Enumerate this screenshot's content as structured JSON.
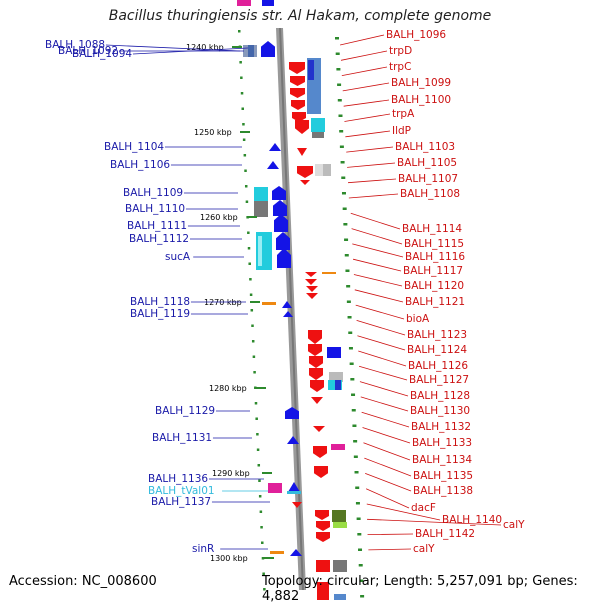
{
  "title": "Bacillus thuringiensis str. Al Hakam, complete genome",
  "accession_text": "Accession: NC_008600",
  "topology_text": "Topology: circular; Length: 5,257,091 bp; Genes: 4,882",
  "colors": {
    "left_label": "#1a1aa8",
    "right_label": "#cc1111",
    "trna_label": "#33bbdd",
    "forward_gene": "#1414e6",
    "reverse_gene": "#ee1111"
  },
  "scale_ticks": [
    "1240 kbp",
    "1250 kbp",
    "1260 kbp",
    "1270 kbp",
    "1280 kbp",
    "1290 kbp",
    "1300 kbp"
  ],
  "left_labels": [
    "BALH_1088",
    "BALH_1092",
    "BALH_1094",
    "BALH_1104",
    "BALH_1106",
    "BALH_1109",
    "BALH_1110",
    "BALH_1111",
    "BALH_1112",
    "sucA",
    "BALH_1118",
    "BALH_1119",
    "BALH_1129",
    "BALH_1131",
    "BALH_1136",
    "BALH_tVal01",
    "BALH_1137",
    "sinR"
  ],
  "right_labels": [
    "BALH_1096",
    "trpD",
    "trpC",
    "BALH_1099",
    "BALH_1100",
    "trpA",
    "IldP",
    "BALH_1103",
    "BALH_1105",
    "BALH_1107",
    "BALH_1108",
    "BALH_1114",
    "BALH_1115",
    "BALH_1116",
    "BALH_1117",
    "BALH_1120",
    "BALH_1121",
    "bioA",
    "BALH_1123",
    "BALH_1124",
    "BALH_1126",
    "BALH_1127",
    "BALH_1128",
    "BALH_1130",
    "BALH_1132",
    "BALH_1133",
    "BALH_1134",
    "BALH_1135",
    "BALH_1138",
    "dacF",
    "BALH_1140",
    "calY",
    "BALH_1142",
    "calY"
  ]
}
